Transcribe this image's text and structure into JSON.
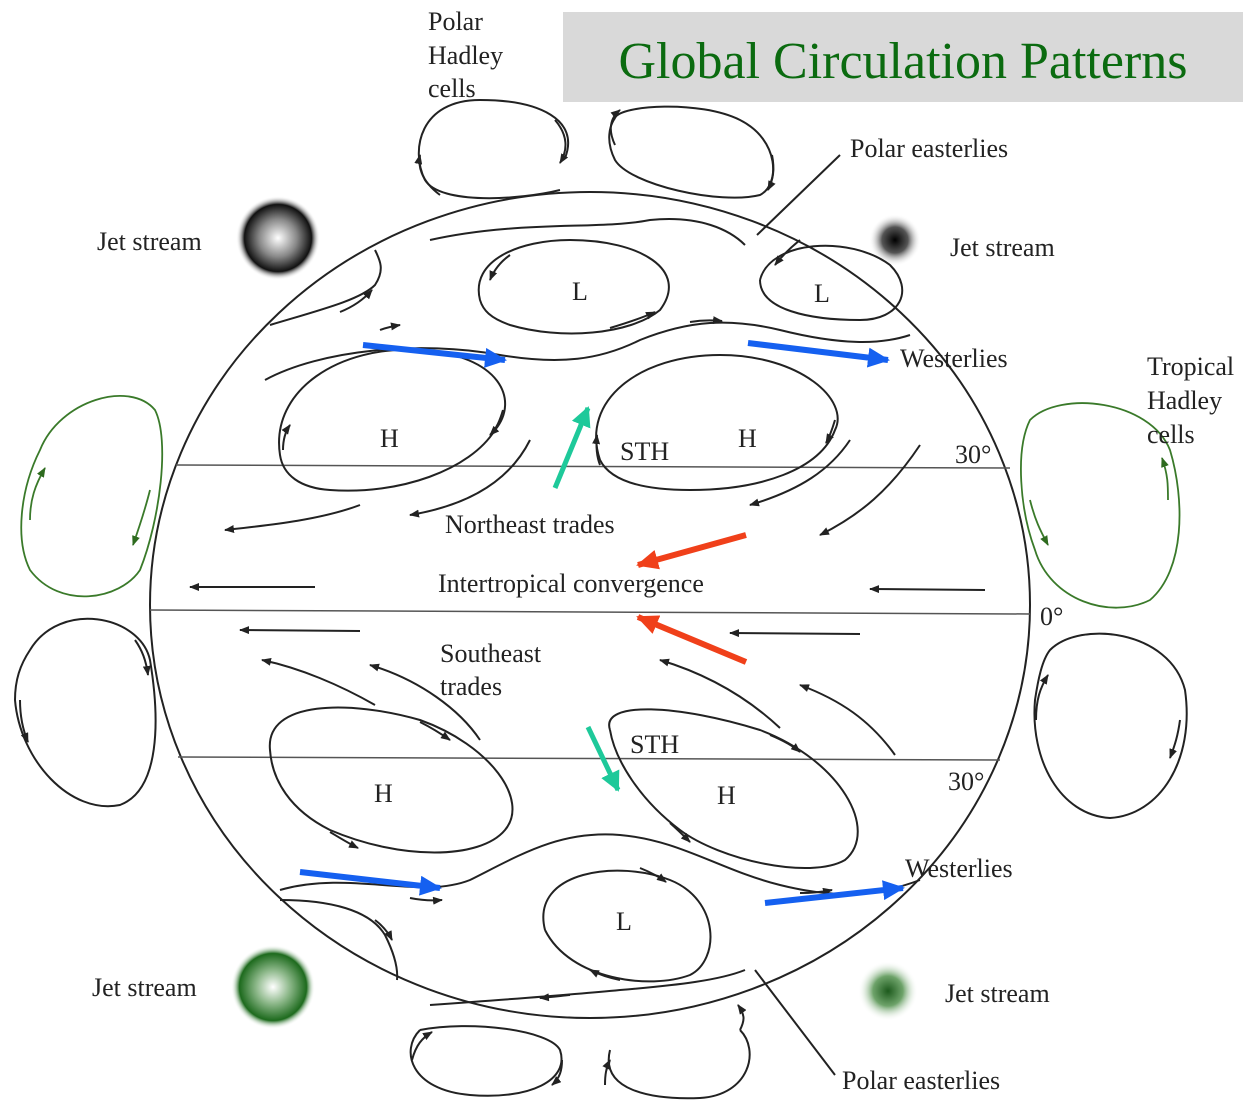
{
  "title": "Global Circulation Patterns",
  "labels": [
    "Polar",
    "Hadley",
    "cells",
    "Polar easterlies",
    "Jet stream",
    "Jet stream",
    "L",
    "L",
    "Westerlies",
    "Tropical",
    "Hadley",
    "cells",
    "H",
    "STH",
    "H",
    "30°",
    "Northeast trades",
    "Intertropical convergence",
    "0°",
    "Southeast",
    "trades",
    "STH",
    "30°",
    "H",
    "H",
    "Westerlies",
    "L",
    "Jet stream",
    "Jet stream",
    "Polar easterlies"
  ]
}
